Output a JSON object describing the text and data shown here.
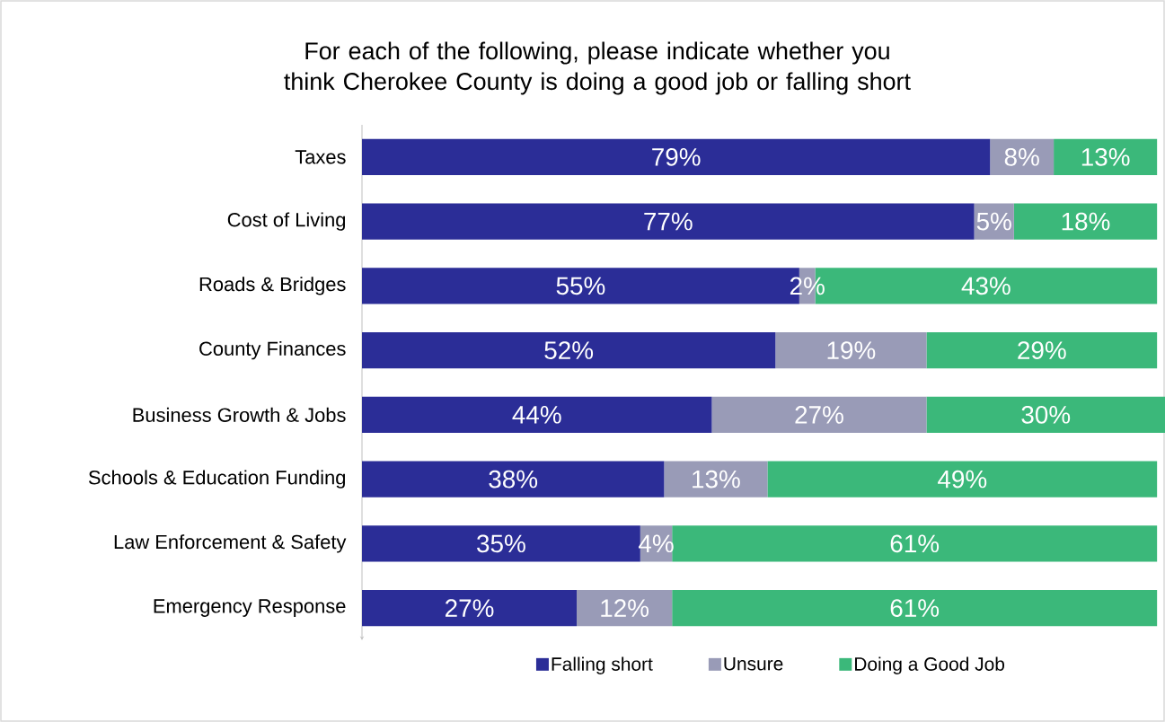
{
  "chart_data": {
    "type": "bar",
    "orientation": "horizontal",
    "stacked": true,
    "title": "For each of the following, please indicate whether you think Cherokee County is doing a good job or falling short",
    "categories": [
      "Taxes",
      "Cost of Living",
      "Roads & Bridges",
      "County Finances",
      "Business Growth & Jobs",
      "Schools & Education Funding",
      "Law Enforcement & Safety",
      "Emergency Response"
    ],
    "series": [
      {
        "name": "Falling short",
        "color": "#2b2d97",
        "values": [
          79,
          77,
          55,
          52,
          44,
          38,
          35,
          27
        ],
        "value_labels": [
          "79%",
          "77%",
          "55%",
          "52%",
          "44%",
          "38%",
          "35%",
          "27%"
        ]
      },
      {
        "name": "Unsure",
        "color": "#999bb7",
        "values": [
          8,
          5,
          2,
          19,
          27,
          13,
          4,
          12
        ],
        "value_labels": [
          "8%",
          "5%",
          "2%",
          "19%",
          "27%",
          "13%",
          "4%",
          "12%"
        ]
      },
      {
        "name": "Doing a Good Job",
        "color": "#3bb87a",
        "values": [
          13,
          18,
          43,
          29,
          30,
          49,
          61,
          61
        ],
        "value_labels": [
          "13%",
          "18%",
          "43%",
          "29%",
          "30%",
          "49%",
          "61%",
          "61%"
        ]
      }
    ],
    "legend": "bottom"
  }
}
